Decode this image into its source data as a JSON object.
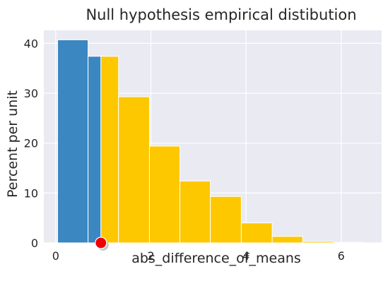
{
  "chart_data": {
    "type": "bar",
    "title": "Null hypothesis empirical distibution",
    "xlabel": "abs_difference_of_means",
    "ylabel": "Percent per unit",
    "xlim": [
      -0.25,
      6.85
    ],
    "ylim": [
      0,
      42.6
    ],
    "xticks": [
      0,
      2,
      4,
      6
    ],
    "yticks": [
      0,
      10,
      20,
      30,
      40
    ],
    "grid": true,
    "background": "#eaeaf2",
    "bins": [
      {
        "x0": 0.04,
        "x1": 0.68,
        "value": 40.7,
        "color": "#3a87c2"
      },
      {
        "x0": 0.68,
        "x1": 0.95,
        "value": 37.4,
        "color": "#3a87c2"
      },
      {
        "x0": 0.95,
        "x1": 1.32,
        "value": 37.4,
        "color": "#fdc800"
      },
      {
        "x0": 1.32,
        "x1": 1.97,
        "value": 29.3,
        "color": "#fdc800"
      },
      {
        "x0": 1.97,
        "x1": 2.61,
        "value": 19.4,
        "color": "#fdc800"
      },
      {
        "x0": 2.61,
        "x1": 3.25,
        "value": 12.4,
        "color": "#fdc800"
      },
      {
        "x0": 3.25,
        "x1": 3.9,
        "value": 9.3,
        "color": "#fdc800"
      },
      {
        "x0": 3.9,
        "x1": 4.55,
        "value": 4.0,
        "color": "#fdc800"
      },
      {
        "x0": 4.55,
        "x1": 5.19,
        "value": 1.3,
        "color": "#fdc800"
      },
      {
        "x0": 5.19,
        "x1": 5.84,
        "value": 0.3,
        "color": "#fdc800"
      },
      {
        "x0": 5.84,
        "x1": 6.48,
        "value": 0.1,
        "color": "#fdc800"
      }
    ],
    "observed_point": {
      "x": 0.95,
      "y": 0,
      "color": "#ee0000"
    }
  }
}
